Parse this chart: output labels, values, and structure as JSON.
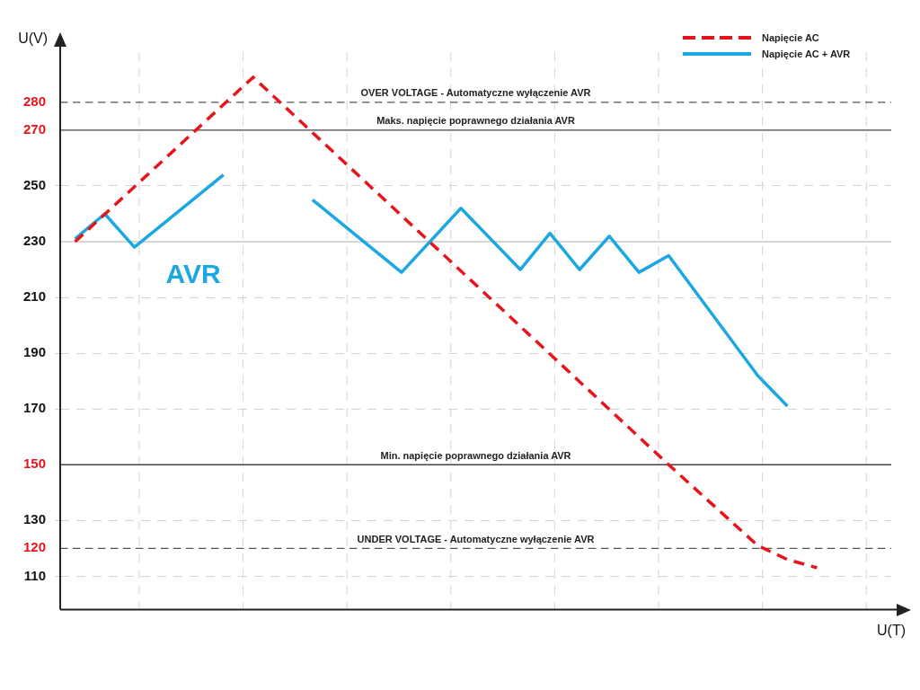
{
  "chart_data": {
    "type": "line",
    "xlabel": "U(T)",
    "ylabel": "U(V)",
    "categories": [
      null,
      null,
      null,
      null,
      null,
      null,
      null,
      null,
      null,
      null,
      null,
      null,
      null,
      null,
      null,
      null,
      null,
      null,
      null,
      null,
      null,
      null,
      null,
      null,
      null,
      null,
      null,
      null
    ],
    "ylim": [
      98,
      298
    ],
    "yticks": [
      110,
      130,
      170,
      190,
      210,
      230,
      250
    ],
    "series": [
      {
        "name": "Napięcie AC",
        "color": "#e8141c",
        "line_style": "dashed",
        "values": [
          230,
          null,
          null,
          null,
          null,
          null,
          289,
          null,
          null,
          null,
          null,
          null,
          null,
          null,
          null,
          null,
          null,
          null,
          null,
          null,
          150,
          null,
          null,
          121,
          116,
          113,
          null,
          null
        ]
      },
      {
        "name": "Napięcie AC  + AVR",
        "color": "#1ba7e1",
        "line_style": "solid",
        "values": [
          231,
          240,
          228,
          null,
          null,
          254,
          null,
          null,
          null,
          null,
          null,
          null,
          null,
          null,
          null,
          null,
          null,
          null,
          null,
          null,
          null,
          null,
          null,
          null,
          null,
          null,
          null,
          null
        ]
      },
      {
        "color": "#1ba7e1",
        "line_style": "solid",
        "values": [
          null,
          null,
          null,
          null,
          null,
          null,
          null,
          null,
          245,
          null,
          null,
          219,
          null,
          242,
          null,
          220,
          233,
          220,
          232,
          219,
          225,
          null,
          null,
          182,
          171,
          null,
          null,
          null
        ]
      }
    ],
    "ref_lines": [
      {
        "axis": "y",
        "value": 280,
        "label": "OVER VOLTAGE - Automatyczne wyłączenie AVR",
        "color": "#555555",
        "line_style": "dashed"
      },
      {
        "axis": "y",
        "value": 270,
        "label": "Maks. napięcie poprawnego działania AVR",
        "color": "#444444",
        "line_style": "solid"
      },
      {
        "axis": "y",
        "value": 230,
        "color": "#c8c8c8",
        "line_style": "solid"
      },
      {
        "axis": "y",
        "value": 150,
        "label": "Min. napięcie poprawnego działania AVR",
        "color": "#444444",
        "line_style": "solid"
      },
      {
        "axis": "y",
        "value": 120,
        "label": "UNDER VOLTAGE - Automatyczne wyłączenie AVR",
        "color": "#555555",
        "line_style": "dashed"
      }
    ],
    "annotations": [
      "AVR",
      "280",
      "270",
      "150",
      "120"
    ],
    "grid": true,
    "legend": "top right",
    "marker": "none"
  }
}
